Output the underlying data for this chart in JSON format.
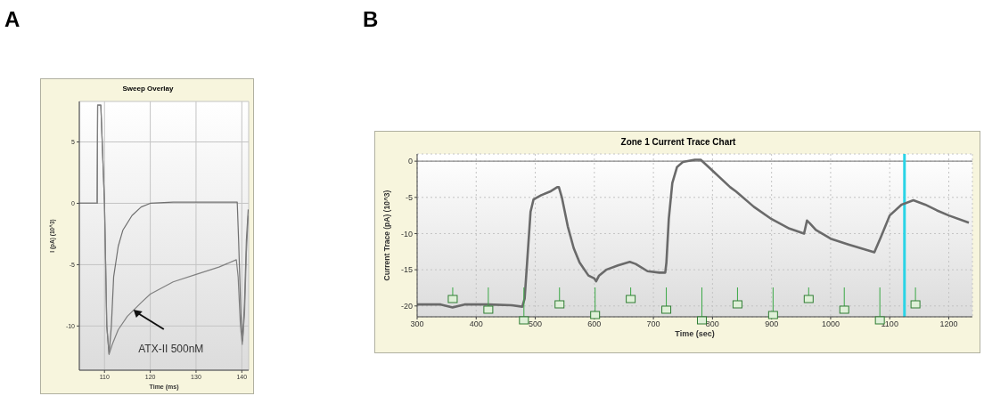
{
  "chart_data": [
    {
      "type": "line",
      "title": "Sweep Overlay",
      "xlabel": "Time (ms)",
      "ylabel": "I (pA) (10^3)",
      "annotations": [
        "A",
        "ATX-II 500nM"
      ],
      "xlim": [
        104.5,
        141.5
      ],
      "xticks": [
        110,
        120,
        130,
        140
      ],
      "ylim": [
        -13.6,
        8.3
      ],
      "yticks": [
        5,
        0,
        -5,
        -10
      ],
      "grid": true,
      "series": [
        {
          "color": "#707070",
          "x": [
            104.5,
            108.4,
            108.5,
            109.2,
            110,
            110.5,
            111,
            111.5,
            112,
            113,
            114,
            116,
            118,
            120,
            125,
            139,
            139.3,
            139.8,
            140.2,
            140.6,
            141,
            141.4
          ],
          "values": [
            0,
            0,
            8,
            8,
            0,
            -10,
            -12.3,
            -10,
            -6,
            -3.5,
            -2.2,
            -1,
            -0.3,
            0,
            0.1,
            0.1,
            -3,
            -9,
            -11.2,
            -8,
            -3,
            -0.5
          ]
        },
        {
          "color": "#808080",
          "x": [
            104.5,
            108.4,
            108.5,
            109.2,
            110,
            110.5,
            111,
            111.7,
            113,
            115,
            118,
            120,
            125,
            130,
            135,
            138.8,
            139.2,
            139.7,
            140.1,
            140.6,
            141,
            141.4
          ],
          "values": [
            0,
            0,
            8,
            8,
            0,
            -10,
            -12.3,
            -11.5,
            -10.3,
            -9.2,
            -8.1,
            -7.4,
            -6.4,
            -5.8,
            -5.2,
            -4.6,
            -6,
            -10,
            -11.5,
            -9,
            -4,
            -1
          ]
        }
      ]
    },
    {
      "type": "line",
      "title": "Zone 1 Current Trace Chart",
      "xlabel": "Time (sec)",
      "ylabel": "Current Trace (pA) (10^3)",
      "annotations": [
        "B"
      ],
      "xlim": [
        300,
        1240
      ],
      "xticks": [
        300,
        400,
        500,
        600,
        700,
        800,
        900,
        1000,
        1100,
        1200
      ],
      "ylim": [
        -21.5,
        1
      ],
      "yticks": [
        0,
        -5,
        -10,
        -15,
        -20
      ],
      "grid": true,
      "line_style": "solid",
      "ref_lines": [
        {
          "axis": "y",
          "value": 0,
          "color": "#8a8a8a"
        },
        {
          "axis": "x",
          "value": 1125,
          "color": "#2ad4e6"
        }
      ],
      "series": [
        {
          "color": "#6a6a6a",
          "x": [
            300,
            340,
            360,
            380,
            420,
            460,
            478,
            482,
            487,
            492,
            497,
            510,
            525,
            537,
            540,
            545,
            555,
            565,
            575,
            590,
            600,
            603,
            608,
            620,
            640,
            660,
            670,
            690,
            710,
            720,
            722,
            726,
            732,
            740,
            750,
            770,
            780,
            800,
            830,
            840,
            870,
            900,
            930,
            955,
            960,
            965,
            975,
            1000,
            1030,
            1074,
            1085,
            1100,
            1120,
            1140,
            1160,
            1180,
            1200,
            1234
          ],
          "values": [
            -19.8,
            -19.8,
            -20.2,
            -19.8,
            -19.8,
            -19.9,
            -20.1,
            -19,
            -13,
            -7,
            -5.3,
            -4.7,
            -4.2,
            -3.6,
            -3.6,
            -5,
            -9,
            -12,
            -14,
            -15.8,
            -16.2,
            -16.6,
            -15.8,
            -15,
            -14.4,
            -13.9,
            -14.2,
            -15.2,
            -15.4,
            -15.4,
            -14,
            -8,
            -3,
            -0.8,
            -0.1,
            0.2,
            0.2,
            -1.3,
            -3.6,
            -4.2,
            -6.3,
            -8,
            -9.3,
            -10,
            -8.2,
            -8.6,
            -9.5,
            -10.7,
            -11.5,
            -12.6,
            -10.5,
            -7.5,
            -6,
            -5.4,
            -6,
            -6.8,
            -7.5,
            -8.5
          ]
        }
      ]
    }
  ]
}
